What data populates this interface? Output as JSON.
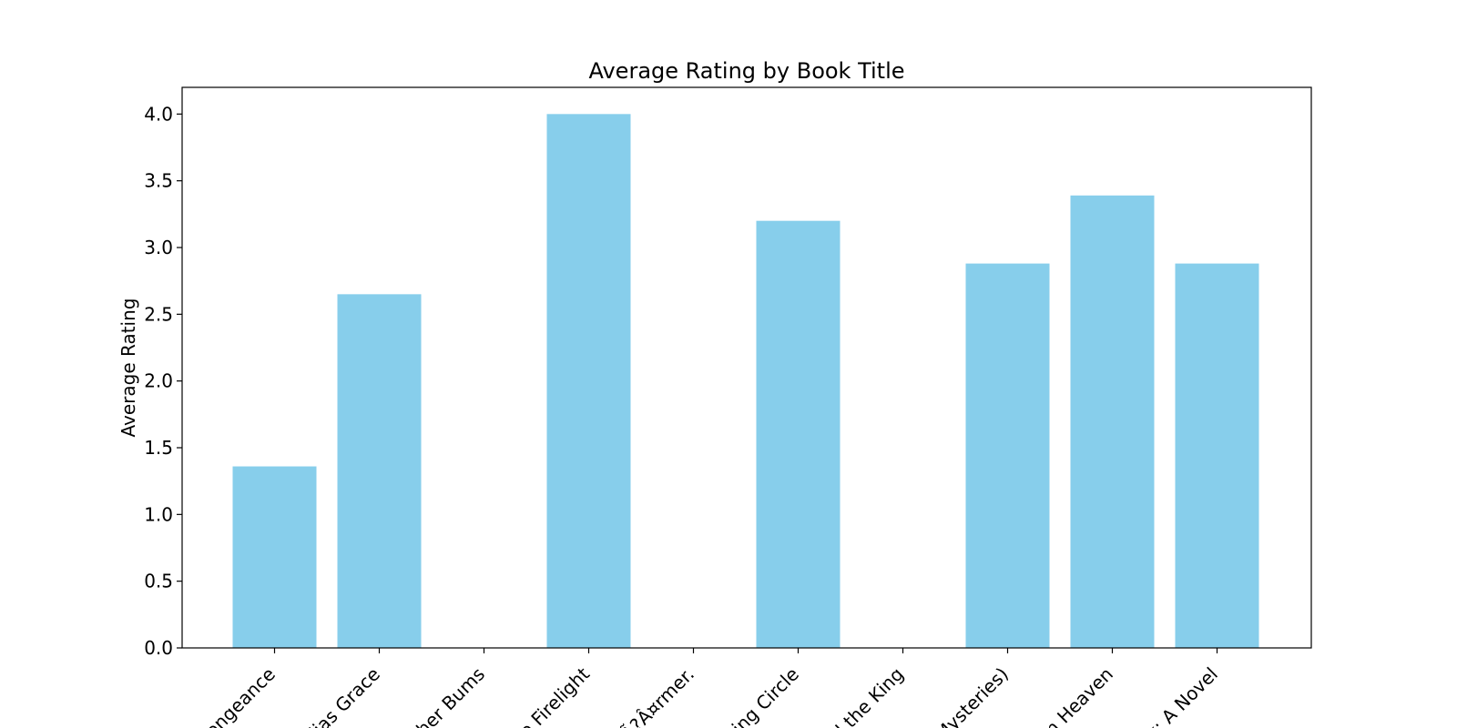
{
  "chart_data": {
    "type": "bar",
    "title": "Average Rating by Book Title",
    "xlabel": "",
    "ylabel": "Average Rating",
    "ylim": [
      0,
      4.2
    ],
    "yticks": [
      "0.0",
      "0.5",
      "1.0",
      "1.5",
      "2.0",
      "2.5",
      "3.0",
      "3.5",
      "4.0"
    ],
    "ytick_values": [
      0,
      0.5,
      1.0,
      1.5,
      2.0,
      2.5,
      3.0,
      3.5,
      4.0
    ],
    "categories": [
      "Vengeance",
      "Alias Grace",
      "ther Bums",
      "e Firelight",
      "Ã?Â¤rmer.",
      "ting Circle",
      "d the King",
      "Mysteries)",
      "m Heaven",
      "k: A Novel"
    ],
    "values": [
      1.36,
      2.65,
      0,
      4.0,
      0,
      3.2,
      0,
      2.88,
      3.39,
      2.88
    ],
    "bar_color": "#87ceeb",
    "grid": false
  }
}
